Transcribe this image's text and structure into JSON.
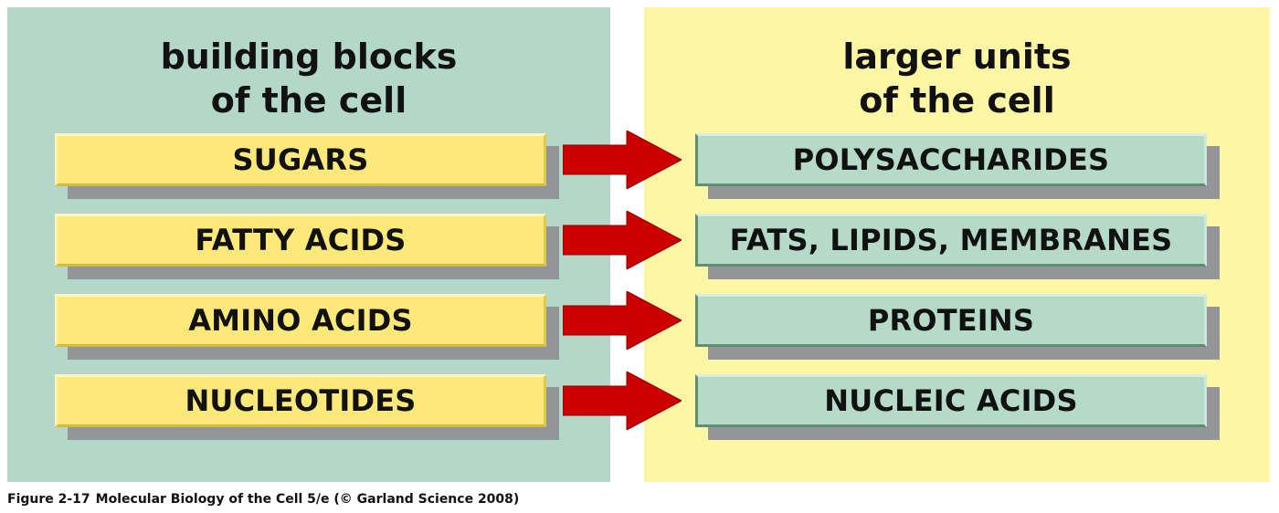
{
  "left_panel": {
    "title_line1": "building blocks",
    "title_line2": "of the cell",
    "items": [
      "SUGARS",
      "FATTY ACIDS",
      "AMINO ACIDS",
      "NUCLEOTIDES"
    ]
  },
  "right_panel": {
    "title_line1": "larger units",
    "title_line2": "of the cell",
    "items": [
      "POLYSACCHARIDES",
      "FATS, LIPIDS, MEMBRANES",
      "PROTEINS",
      "NUCLEIC ACIDS"
    ]
  },
  "caption": {
    "figure": "Figure 2-17",
    "text": "Molecular Biology of the Cell 5/e (© Garland Science 2008)"
  },
  "colors": {
    "left_panel_bg": "#b3d8c9",
    "right_panel_bg": "#fdf7a5",
    "building_block_box": "#fde97a",
    "larger_unit_box": "#b5dac8",
    "arrow": "#cc0000",
    "box_shadow": "#939598"
  }
}
